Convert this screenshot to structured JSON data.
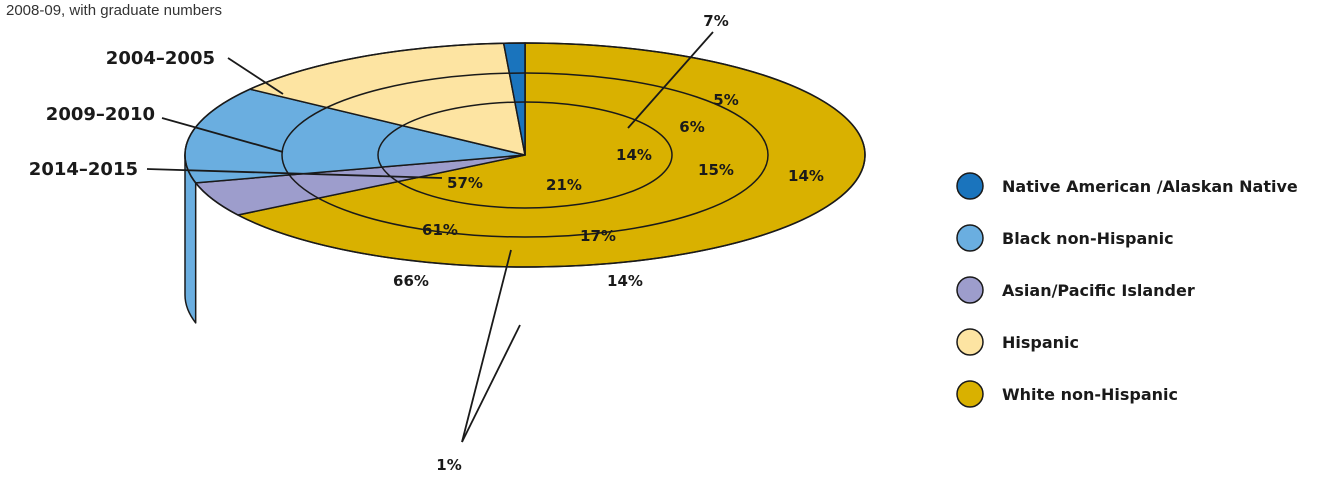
{
  "subtitle": "2008-09, with graduate numbers",
  "colors": {
    "native": "#1a74bd",
    "black": "#6aaee0",
    "asian": "#9d9dcc",
    "hispanic": "#fde4a2",
    "white": "#d9b100",
    "outline": "#1a1a1a"
  },
  "chart_data": {
    "type": "pie",
    "rings": [
      "2004–2005",
      "2009–2010",
      "2014–2015"
    ],
    "categories": [
      "Native American /Alaskan Native",
      "Black non-Hispanic",
      "Asian/Pacific Islander",
      "Hispanic",
      "White non-Hispanic"
    ],
    "series": [
      {
        "name": "2004–2005",
        "values": [
          1,
          14,
          5,
          14,
          66
        ]
      },
      {
        "name": "2009–2010",
        "values": [
          1,
          15,
          6,
          17,
          61
        ]
      },
      {
        "name": "2014–2015",
        "values": [
          1,
          14,
          7,
          21,
          57
        ]
      }
    ],
    "data_labels": {
      "outer": [
        "14%",
        "5%",
        "14%",
        "66%"
      ],
      "middle": [
        "15%",
        "6%",
        "17%",
        "61%"
      ],
      "inner": [
        "14%",
        "21%",
        "57%"
      ],
      "asian_inner": "7%",
      "native_all": "1%"
    },
    "legend": {
      "position": "right",
      "items": [
        {
          "label": "Native American /Alaskan Native",
          "color": "#1a74bd"
        },
        {
          "label": "Black non-Hispanic",
          "color": "#6aaee0"
        },
        {
          "label": "Asian/Pacific Islander",
          "color": "#9d9dcc"
        },
        {
          "label": "Hispanic",
          "color": "#fde4a2"
        },
        {
          "label": "White non-Hispanic",
          "color": "#d9b100"
        }
      ]
    }
  }
}
